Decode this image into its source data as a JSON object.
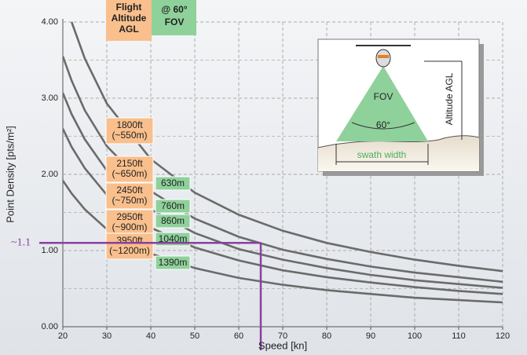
{
  "chart_data": {
    "type": "line",
    "header": {
      "altitude": "Flight Altitude AGL",
      "fov": "@ 60° FOV"
    },
    "x_label": "Speed [kn]",
    "y_label": "Point Density [pts/m²]",
    "x": [
      20,
      22,
      25,
      30,
      40,
      50,
      60,
      70,
      80,
      90,
      100,
      110,
      120
    ],
    "series": [
      {
        "name": "1800ft",
        "altitude_m": "(~550m)",
        "swath": "630m",
        "color": "#6b6b6b",
        "values": [
          null,
          4.0,
          3.52,
          2.93,
          2.2,
          1.76,
          1.47,
          1.26,
          1.1,
          0.98,
          0.88,
          0.8,
          0.73
        ]
      },
      {
        "name": "2150ft",
        "altitude_m": "(~650m)",
        "swath": "760m",
        "color": "#6b6b6b",
        "values": [
          3.55,
          3.23,
          2.84,
          2.37,
          1.78,
          1.42,
          1.18,
          1.01,
          0.89,
          0.79,
          0.71,
          0.65,
          0.59
        ]
      },
      {
        "name": "2450ft",
        "altitude_m": "(~750m)",
        "swath": "860m",
        "color": "#6b6b6b",
        "values": [
          3.07,
          2.79,
          2.46,
          2.05,
          1.54,
          1.23,
          1.02,
          0.88,
          0.77,
          0.68,
          0.61,
          0.56,
          0.51
        ]
      },
      {
        "name": "2950ft",
        "altitude_m": "(~900m)",
        "swath": "1040m",
        "color": "#6b6b6b",
        "values": [
          2.6,
          2.36,
          2.08,
          1.73,
          1.3,
          1.04,
          0.87,
          0.74,
          0.65,
          0.58,
          0.52,
          0.47,
          0.43
        ]
      },
      {
        "name": "3950ft",
        "altitude_m": "(~1200m)",
        "swath": "1390m",
        "color": "#6b6b6b",
        "values": [
          1.92,
          1.75,
          1.54,
          1.28,
          0.96,
          0.77,
          0.64,
          0.55,
          0.48,
          0.43,
          0.38,
          0.35,
          0.32
        ]
      }
    ],
    "xlim": [
      20,
      120
    ],
    "xticks": [
      20,
      30,
      40,
      50,
      60,
      70,
      80,
      90,
      100,
      110,
      120
    ],
    "ylim": [
      0,
      4
    ],
    "yticks": [
      {
        "value": 0,
        "label": "0.00"
      },
      {
        "value": 1,
        "label": "1.00"
      },
      {
        "value": 2,
        "label": "2.00"
      },
      {
        "value": 3,
        "label": "3.00"
      },
      {
        "value": 4,
        "label": "4.00"
      }
    ],
    "yminorticks": [
      0.5,
      1.5,
      2.5,
      3.5
    ],
    "grid": true,
    "marker": {
      "x": 65,
      "y": 1.1,
      "label": "~1.1",
      "color": "#8a3fa0"
    },
    "inset": {
      "fov": "FOV",
      "angle": "60°",
      "altitude": "Altitude AGL",
      "swath": "swath width"
    }
  }
}
